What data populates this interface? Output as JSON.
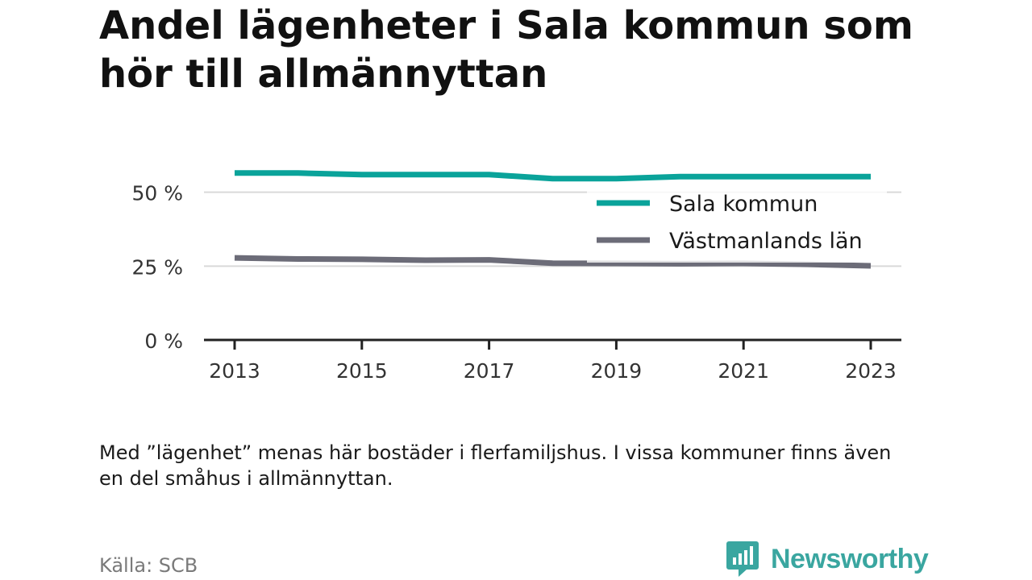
{
  "title": "Andel lägenheter i Sala kommun som hör till allmännyttan",
  "note": "Med ”lägenhet” menas här bostäder i flerfamiljshus. I vissa kommuner finns även en del småhus i allmännyttan.",
  "source": "Källa: SCB",
  "brand": {
    "name": "Newsworthy",
    "icon": "bar-chart-speech-bubble-icon",
    "color": "#3aa6a0"
  },
  "chart_data": {
    "type": "line",
    "x": [
      2013,
      2014,
      2015,
      2016,
      2017,
      2018,
      2019,
      2020,
      2021,
      2022,
      2023
    ],
    "series": [
      {
        "name": "Sala kommun",
        "color": "#0aa39a",
        "values": [
          56.5,
          56.5,
          56.0,
          56.0,
          56.0,
          54.6,
          54.6,
          55.3,
          55.3,
          55.3,
          55.3
        ]
      },
      {
        "name": "Västmanlands län",
        "color": "#6c6c78",
        "values": [
          27.8,
          27.4,
          27.3,
          27.0,
          27.1,
          26.0,
          25.9,
          25.8,
          25.9,
          25.6,
          25.1
        ]
      }
    ],
    "ylim": [
      0,
      60
    ],
    "yticks": [
      0,
      25,
      50
    ],
    "ytick_labels": [
      "0 %",
      "25 %",
      "50 %"
    ],
    "xticks": [
      2013,
      2015,
      2017,
      2019,
      2021,
      2023
    ],
    "xtick_labels": [
      "2013",
      "2015",
      "2017",
      "2019",
      "2021",
      "2023"
    ],
    "grid": true,
    "legend_position": "top-right"
  }
}
